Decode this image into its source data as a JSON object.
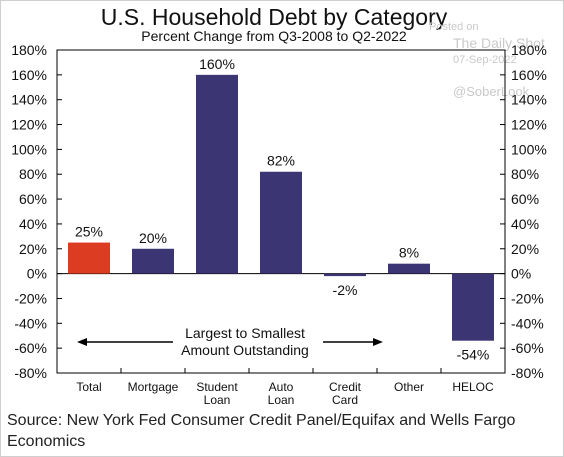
{
  "chart_data": {
    "type": "bar",
    "title": "U.S. Household Debt by Category",
    "subtitle": "Percent Change from Q3-2008 to Q2-2022",
    "categories": [
      [
        "Total"
      ],
      [
        "Mortgage"
      ],
      [
        "Student",
        "Loan"
      ],
      [
        "Auto",
        "Loan"
      ],
      [
        "Credit",
        "Card"
      ],
      [
        "Other"
      ],
      [
        "HELOC"
      ]
    ],
    "values": [
      25,
      20,
      160,
      82,
      -2,
      8,
      -54
    ],
    "value_labels": [
      "25%",
      "20%",
      "160%",
      "82%",
      "-2%",
      "8%",
      "-54%"
    ],
    "ylim": [
      -80,
      180
    ],
    "yticks": [
      -80,
      -60,
      -40,
      -20,
      0,
      20,
      40,
      60,
      80,
      100,
      120,
      140,
      160,
      180
    ],
    "tick_suffix": "%",
    "grid": false,
    "colors": {
      "highlight": "#dc3c21",
      "bar": "#3b3573"
    },
    "highlight_index": 0,
    "annotation": [
      "Largest to Smallest",
      "Amount Outstanding"
    ]
  },
  "watermark": {
    "posted_on": "Posted on",
    "site": "The Daily Shot",
    "date": "07-Sep-2022",
    "handle": "@SoberLook"
  },
  "source": "Source: New York Fed Consumer Credit Panel/Equifax and Wells Fargo Economics"
}
